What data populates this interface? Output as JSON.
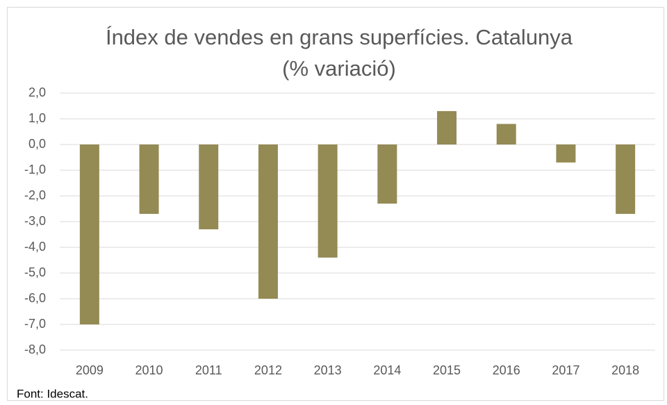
{
  "chart_data": {
    "type": "bar",
    "title": "Índex de vendes en grans superfícies. Catalunya",
    "subtitle": "(% variació)",
    "source": "Font: Idescat.",
    "categories": [
      "2009",
      "2010",
      "2011",
      "2012",
      "2013",
      "2014",
      "2015",
      "2016",
      "2017",
      "2018"
    ],
    "values": [
      -7.0,
      -2.7,
      -3.3,
      -6.0,
      -4.4,
      -2.3,
      1.3,
      0.8,
      -0.7,
      -2.7
    ],
    "color": "#948a54",
    "ylim": [
      -8,
      2
    ],
    "yticks": [
      {
        "value": 2,
        "label": "2,0"
      },
      {
        "value": 1,
        "label": "1,0"
      },
      {
        "value": 0,
        "label": "0,0"
      },
      {
        "value": -1,
        "label": "-1,0"
      },
      {
        "value": -2,
        "label": "-2,0"
      },
      {
        "value": -3,
        "label": "-3,0"
      },
      {
        "value": -4,
        "label": "-4,0"
      },
      {
        "value": -5,
        "label": "-5,0"
      },
      {
        "value": -6,
        "label": "-6,0"
      },
      {
        "value": -7,
        "label": "-7,0"
      },
      {
        "value": -8,
        "label": "-8,0"
      }
    ],
    "grid": true
  }
}
